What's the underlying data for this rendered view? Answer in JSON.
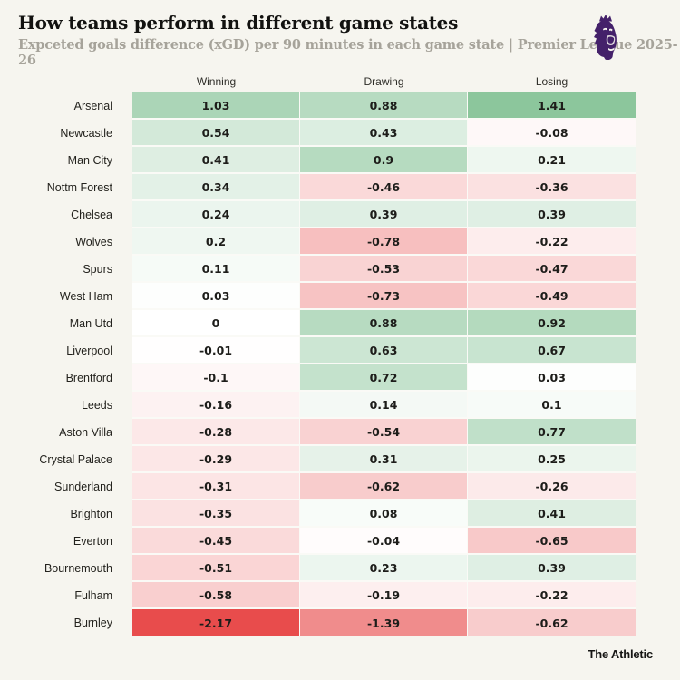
{
  "header": {
    "title": "How teams perform in different game states",
    "subtitle": "Expceted goals difference (xGD) per 90 minutes in each game state | Premier League 2025-26"
  },
  "branding": {
    "logo_name": "premier-league-lion",
    "logo_color": "#44216a",
    "footer_credit": "The Athletic"
  },
  "chart_data": {
    "type": "heatmap",
    "title": "How teams perform in different game states",
    "subtitle": "Expceted goals difference (xGD) per 90 minutes in each game state | Premier League 2025-26",
    "columns": [
      "Winning",
      "Drawing",
      "Losing"
    ],
    "rows": [
      {
        "team": "Arsenal",
        "values": [
          1.03,
          0.88,
          1.41
        ]
      },
      {
        "team": "Newcastle",
        "values": [
          0.54,
          0.43,
          -0.08
        ]
      },
      {
        "team": "Man City",
        "values": [
          0.41,
          0.9,
          0.21
        ]
      },
      {
        "team": "Nottm Forest",
        "values": [
          0.34,
          -0.46,
          -0.36
        ]
      },
      {
        "team": "Chelsea",
        "values": [
          0.24,
          0.39,
          0.39
        ]
      },
      {
        "team": "Wolves",
        "values": [
          0.2,
          -0.78,
          -0.22
        ]
      },
      {
        "team": "Spurs",
        "values": [
          0.11,
          -0.53,
          -0.47
        ]
      },
      {
        "team": "West Ham",
        "values": [
          0.03,
          -0.73,
          -0.49
        ]
      },
      {
        "team": "Man Utd",
        "values": [
          0,
          0.88,
          0.92
        ]
      },
      {
        "team": "Liverpool",
        "values": [
          -0.01,
          0.63,
          0.67
        ]
      },
      {
        "team": "Brentford",
        "values": [
          -0.1,
          0.72,
          0.03
        ]
      },
      {
        "team": "Leeds",
        "values": [
          -0.16,
          0.14,
          0.1
        ]
      },
      {
        "team": "Aston Villa",
        "values": [
          -0.28,
          -0.54,
          0.77
        ]
      },
      {
        "team": "Crystal Palace",
        "values": [
          -0.29,
          0.31,
          0.25
        ]
      },
      {
        "team": "Sunderland",
        "values": [
          -0.31,
          -0.62,
          -0.26
        ]
      },
      {
        "team": "Brighton",
        "values": [
          -0.35,
          0.08,
          0.41
        ]
      },
      {
        "team": "Everton",
        "values": [
          -0.45,
          -0.04,
          -0.65
        ]
      },
      {
        "team": "Bournemouth",
        "values": [
          -0.51,
          0.23,
          0.39
        ]
      },
      {
        "team": "Fulham",
        "values": [
          -0.58,
          -0.19,
          -0.22
        ]
      },
      {
        "team": "Burnley",
        "values": [
          -2.17,
          -1.39,
          -0.62
        ]
      }
    ],
    "color_scale": {
      "zero_color": "#ffffff",
      "positive_color": "#8cc69c",
      "negative_color": "#e84c4c",
      "positive_max": 1.41,
      "negative_min": -2.17
    },
    "legend": "none",
    "grid": "off"
  }
}
